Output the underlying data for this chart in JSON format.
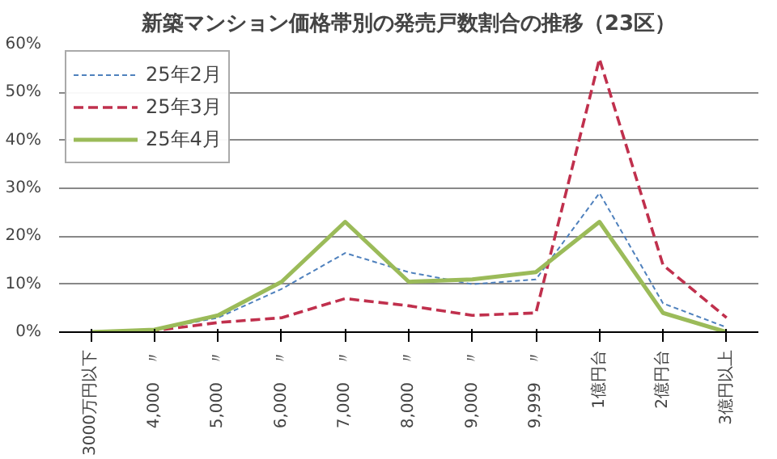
{
  "chart_data": {
    "type": "line",
    "title": "新築マンション価格帯別の発売戸数割合の推移（23区）",
    "categories": [
      "3000万円以下",
      "4,000　〃",
      "5,000　〃",
      "6,000　〃",
      "7,000　〃",
      "8,000　〃",
      "9,000　〃",
      "9,999　〃",
      "1億円台",
      "2億円台",
      "3億円以上"
    ],
    "series": [
      {
        "name": "25年2月",
        "color": "#4f81bd",
        "line_style": "dotted",
        "values": [
          0,
          0.5,
          3,
          9,
          16.5,
          12.5,
          10,
          11,
          29,
          6,
          1
        ]
      },
      {
        "name": "25年3月",
        "color": "#c0304d",
        "line_style": "dashed",
        "values": [
          0,
          0.3,
          2,
          3,
          7,
          5.5,
          3.5,
          4,
          57,
          14,
          3
        ]
      },
      {
        "name": "25年4月",
        "color": "#9bbb59",
        "line_style": "solid",
        "values": [
          0,
          0.5,
          3.5,
          10.5,
          23,
          10.5,
          11,
          12.5,
          23,
          4,
          0
        ]
      }
    ],
    "ylim": [
      0,
      60
    ],
    "yticks": [
      {
        "value": 0,
        "label": "0%"
      },
      {
        "value": 10,
        "label": "10%"
      },
      {
        "value": 20,
        "label": "20%"
      },
      {
        "value": 30,
        "label": "30%"
      },
      {
        "value": 40,
        "label": "40%"
      },
      {
        "value": 50,
        "label": "50%"
      },
      {
        "value": 60,
        "label": "60%"
      }
    ],
    "grid": "y",
    "legend": "top left",
    "marker": "none"
  }
}
